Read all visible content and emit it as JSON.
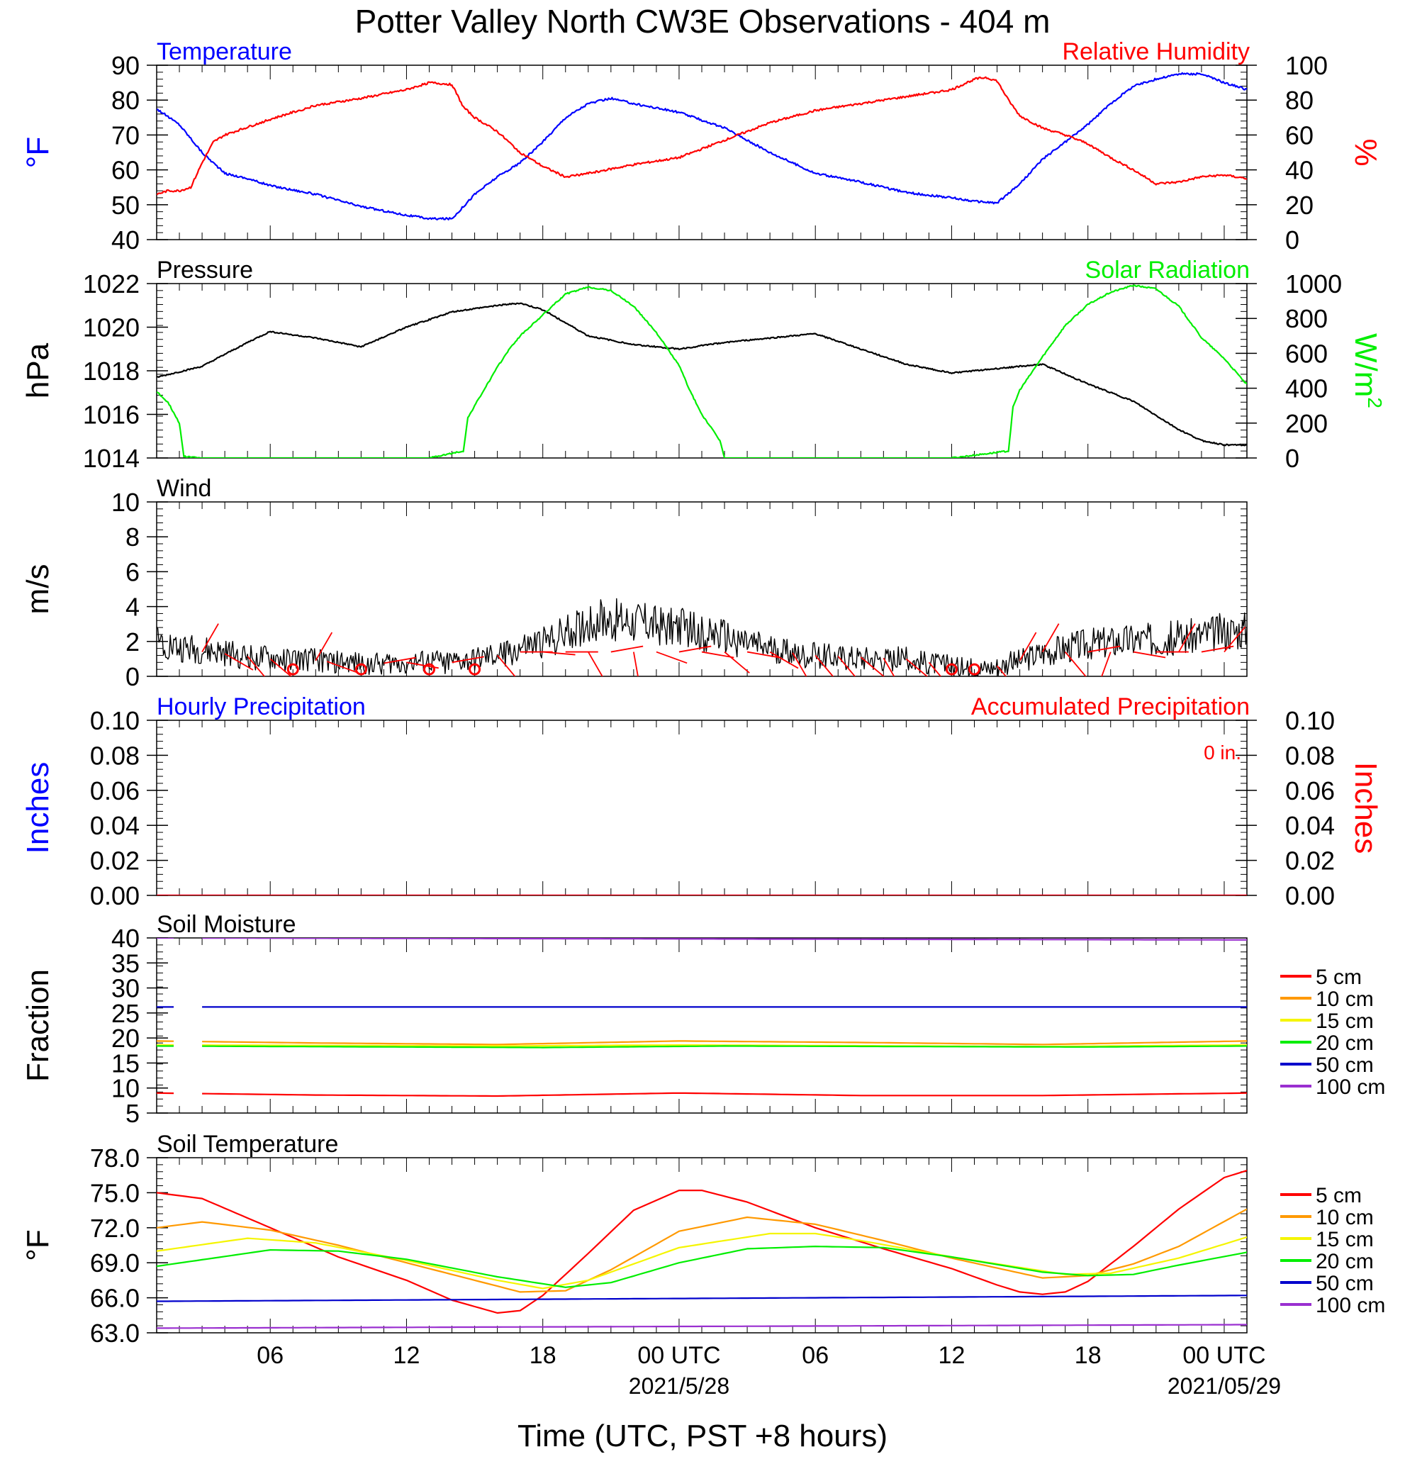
{
  "title": "Potter Valley North CW3E Observations - 404 m",
  "xlabel": "Time (UTC, PST +8 hours)",
  "x_ticks": [
    {
      "t": 6,
      "label": "06",
      "sub": ""
    },
    {
      "t": 12,
      "label": "12",
      "sub": ""
    },
    {
      "t": 18,
      "label": "18",
      "sub": ""
    },
    {
      "t": 24,
      "label": "00 UTC",
      "sub": "2021/5/28"
    },
    {
      "t": 30,
      "label": "06",
      "sub": ""
    },
    {
      "t": 36,
      "label": "12",
      "sub": ""
    },
    {
      "t": 42,
      "label": "18",
      "sub": ""
    },
    {
      "t": 48,
      "label": "00 UTC",
      "sub": "2021/05/29"
    }
  ],
  "x_range_hours": [
    1,
    49
  ],
  "colors": {
    "blue": "#0000ff",
    "red": "#ff0000",
    "green": "#00ee00",
    "black": "#000000",
    "orange": "#ff9900",
    "yellow": "#f5f500",
    "purple": "#9a2fd0"
  },
  "chart_data": [
    {
      "type": "line",
      "panel": "temperature_humidity",
      "title_left": "Temperature",
      "title_right": "Relative Humidity",
      "ylabel_left": "°F",
      "ylabel_right": "%",
      "ylim_left": [
        40,
        90
      ],
      "ylim_right": [
        0,
        100
      ],
      "yticks_left": [
        "90",
        "80",
        "70",
        "60",
        "50",
        "40"
      ],
      "yticks_right": [
        "100",
        "80",
        "60",
        "40",
        "20",
        "0"
      ],
      "series": [
        {
          "name": "Temperature",
          "axis": "left",
          "color": "#0000ff",
          "noise": 0.6,
          "x": [
            1,
            2,
            3,
            4,
            5,
            6,
            8,
            10,
            12,
            13,
            14,
            15,
            16,
            17,
            18,
            19,
            20,
            21,
            22,
            24,
            26,
            28,
            30,
            32,
            34,
            36,
            37,
            38,
            39,
            40,
            41,
            42,
            43,
            44,
            45,
            46,
            47,
            48,
            49
          ],
          "y": [
            77.5,
            73,
            65,
            59,
            57.5,
            55.5,
            53,
            49.5,
            47,
            46,
            46,
            53,
            58,
            62,
            68,
            75,
            79,
            80.5,
            79,
            76.5,
            72,
            65,
            59,
            56.5,
            53.5,
            52,
            51,
            50.5,
            56,
            63,
            68,
            73,
            79,
            84,
            86,
            87.5,
            87.5,
            85,
            83
          ]
        },
        {
          "name": "Relative Humidity",
          "axis": "right",
          "color": "#ff0000",
          "noise": 1.2,
          "x": [
            1,
            1.5,
            2,
            2.5,
            3,
            3.5,
            4,
            6,
            8,
            10,
            12,
            13,
            14,
            14.5,
            15,
            16,
            17,
            18,
            19,
            20,
            22,
            24,
            26,
            28,
            30,
            32,
            34,
            36,
            37,
            37.5,
            38,
            38.5,
            39,
            40,
            41,
            42,
            43,
            44,
            45,
            46,
            47,
            48,
            49
          ],
          "y": [
            26,
            28,
            28,
            30,
            44,
            56,
            60,
            69,
            77,
            81,
            86,
            90,
            89,
            76,
            70,
            62,
            50,
            42,
            36,
            38,
            43,
            47,
            57,
            67,
            74,
            78,
            82,
            86,
            92,
            93,
            91,
            80,
            71,
            64,
            60,
            55,
            47,
            40,
            32,
            33,
            36,
            37,
            35
          ]
        }
      ]
    },
    {
      "type": "line",
      "panel": "pressure_solar",
      "title_left": "Pressure",
      "title_right": "Solar Radiation",
      "ylabel_left": "hPa",
      "ylabel_right": "W/m",
      "ylabel_right_sup": "2",
      "ylim_left": [
        1014,
        1022
      ],
      "ylim_right": [
        0,
        1000
      ],
      "yticks_left": [
        "1022",
        "1020",
        "1018",
        "1016",
        "1014"
      ],
      "yticks_right": [
        "1000",
        "800",
        "600",
        "400",
        "200",
        "0"
      ],
      "series": [
        {
          "name": "Pressure",
          "axis": "left",
          "color": "#000000",
          "noise": 0.06,
          "x": [
            1,
            3,
            5,
            6,
            8,
            10,
            12,
            14,
            16,
            17,
            18,
            20,
            22,
            24,
            26,
            28,
            30,
            32,
            34,
            36,
            38,
            40,
            42,
            44,
            46,
            47,
            48,
            49
          ],
          "y": [
            1017.7,
            1018.2,
            1019.3,
            1019.8,
            1019.5,
            1019.1,
            1020.0,
            1020.7,
            1021.0,
            1021.1,
            1020.8,
            1019.6,
            1019.2,
            1019.0,
            1019.3,
            1019.5,
            1019.7,
            1019.0,
            1018.3,
            1017.9,
            1018.1,
            1018.3,
            1017.4,
            1016.6,
            1015.3,
            1014.8,
            1014.6,
            1014.6
          ]
        },
        {
          "name": "Solar Radiation",
          "axis": "right",
          "color": "#00ee00",
          "noise": 8,
          "x": [
            1,
            1.5,
            2,
            2.2,
            3,
            13,
            14.5,
            14.7,
            15,
            16,
            16.5,
            17,
            18,
            19,
            20,
            21,
            22,
            23,
            24,
            24.5,
            25,
            25.8,
            26,
            30,
            36,
            38.5,
            38.7,
            39,
            40,
            41,
            42,
            43,
            44,
            45,
            46,
            47,
            48,
            49
          ],
          "y": [
            380,
            320,
            200,
            10,
            0,
            0,
            40,
            230,
            300,
            520,
            620,
            700,
            820,
            940,
            980,
            960,
            870,
            720,
            530,
            380,
            250,
            100,
            0,
            0,
            0,
            40,
            290,
            390,
            580,
            760,
            880,
            950,
            990,
            970,
            870,
            690,
            570,
            420
          ]
        }
      ]
    },
    {
      "type": "line",
      "panel": "wind",
      "title_left": "Wind",
      "ylabel_left": "m/s",
      "ylim_left": [
        0,
        10
      ],
      "yticks_left": [
        "10",
        "8",
        "6",
        "4",
        "2",
        "0"
      ],
      "series": [
        {
          "name": "Wind",
          "axis": "left",
          "color": "#000000",
          "noise": 0.8,
          "x": [
            1,
            2,
            4,
            6,
            8,
            10,
            12,
            14,
            15,
            16,
            17,
            18,
            19,
            20,
            21,
            22,
            23,
            24,
            26,
            28,
            30,
            32,
            34,
            36,
            37,
            38,
            39,
            40,
            42,
            44,
            46,
            48,
            49
          ],
          "y": [
            2.2,
            1.6,
            1.3,
            1.0,
            0.9,
            0.7,
            0.8,
            0.8,
            0.9,
            1.2,
            1.6,
            1.9,
            2.4,
            3.0,
            3.3,
            3.2,
            3.0,
            2.8,
            2.2,
            1.5,
            1.2,
            1.1,
            1.0,
            0.6,
            0.4,
            0.6,
            0.9,
            1.4,
            1.9,
            2.1,
            2.2,
            2.6,
            2.7
          ]
        }
      ],
      "barbs": [
        {
          "t": 3.0,
          "dir": 30
        },
        {
          "t": 4.0,
          "dir": 120
        },
        {
          "t": 5.0,
          "dir": 140
        },
        {
          "t": 6.0,
          "dir": 130
        },
        {
          "t": 7.0,
          "calm": true
        },
        {
          "t": 8.0,
          "dir": 30
        },
        {
          "t": 8.5,
          "dir": 110
        },
        {
          "t": 10.0,
          "calm": true
        },
        {
          "t": 11.0,
          "dir": 80
        },
        {
          "t": 12.0,
          "dir": 100
        },
        {
          "t": 13.0,
          "calm": true
        },
        {
          "t": 14.0,
          "dir": 80
        },
        {
          "t": 15.0,
          "calm": true
        },
        {
          "t": 16.0,
          "dir": 140
        },
        {
          "t": 17.0,
          "dir": 90
        },
        {
          "t": 18.0,
          "dir": 95
        },
        {
          "t": 19.0,
          "dir": 90
        },
        {
          "t": 20.0,
          "dir": 150
        },
        {
          "t": 21.0,
          "dir": 80
        },
        {
          "t": 22.0,
          "dir": 170
        },
        {
          "t": 23.0,
          "dir": 110
        },
        {
          "t": 24.0,
          "dir": 80
        },
        {
          "t": 25.0,
          "dir": 100
        },
        {
          "t": 26.0,
          "dir": 130
        },
        {
          "t": 27.0,
          "dir": 100
        },
        {
          "t": 28.0,
          "dir": 120
        },
        {
          "t": 29.0,
          "dir": 150
        },
        {
          "t": 30.0,
          "dir": 140
        },
        {
          "t": 31.0,
          "dir": 140
        },
        {
          "t": 32.0,
          "dir": 130
        },
        {
          "t": 33.0,
          "dir": 150
        },
        {
          "t": 34.0,
          "dir": 130
        },
        {
          "t": 35.0,
          "dir": 140
        },
        {
          "t": 36.0,
          "calm": true
        },
        {
          "t": 37.0,
          "calm": true
        },
        {
          "t": 38.0,
          "dir": 140
        },
        {
          "t": 39.0,
          "dir": 30
        },
        {
          "t": 40.0,
          "dir": 30
        },
        {
          "t": 41.0,
          "dir": 140
        },
        {
          "t": 42.0,
          "dir": 80
        },
        {
          "t": 43.0,
          "dir": 200
        },
        {
          "t": 44.0,
          "dir": 100
        },
        {
          "t": 45.0,
          "dir": 90
        },
        {
          "t": 46.0,
          "dir": 30
        },
        {
          "t": 47.0,
          "dir": 80
        },
        {
          "t": 48.0,
          "dir": 40
        }
      ]
    },
    {
      "type": "line",
      "panel": "precipitation",
      "title_left": "Hourly Precipitation",
      "title_right": "Accumulated Precipitation",
      "annotation": "0 in.",
      "ylabel_left": "Inches",
      "ylabel_right": "Inches",
      "ylim_left": [
        0,
        0.1
      ],
      "ylim_right": [
        0,
        0.1
      ],
      "yticks_left": [
        "0.10",
        "0.08",
        "0.06",
        "0.04",
        "0.02",
        "0.00"
      ],
      "yticks_right": [
        "0.10",
        "0.08",
        "0.06",
        "0.04",
        "0.02",
        "0.00"
      ],
      "series": [
        {
          "name": "Hourly Precipitation",
          "axis": "left",
          "color": "#0000ff",
          "noise": 0,
          "x": [
            1,
            49
          ],
          "y": [
            0,
            0
          ]
        },
        {
          "name": "Accumulated Precipitation",
          "axis": "right",
          "color": "#ff0000",
          "noise": 0,
          "x": [
            1,
            49
          ],
          "y": [
            0,
            0
          ]
        }
      ]
    },
    {
      "type": "line",
      "panel": "soil_moisture",
      "title_left": "Soil Moisture",
      "ylabel_left": "Fraction",
      "ylim_left": [
        5,
        40
      ],
      "yticks_left": [
        "40",
        "35",
        "30",
        "25",
        "20",
        "15",
        "10",
        "5"
      ],
      "gap": [
        1.9,
        2.9
      ],
      "legend": [
        "5 cm",
        "10 cm",
        "15 cm",
        "20 cm",
        "50 cm",
        "100 cm"
      ],
      "series": [
        {
          "name": "5 cm",
          "color": "#ff0000",
          "noise": 0,
          "x": [
            1,
            8,
            16,
            24,
            32,
            40,
            49
          ],
          "y": [
            9.0,
            8.6,
            8.4,
            9.0,
            8.5,
            8.5,
            9.0
          ]
        },
        {
          "name": "10 cm",
          "color": "#ff9900",
          "noise": 0,
          "x": [
            1,
            8,
            16,
            24,
            32,
            40,
            49
          ],
          "y": [
            19.4,
            19.0,
            18.7,
            19.4,
            19.1,
            18.7,
            19.4
          ]
        },
        {
          "name": "15 cm",
          "color": "#f5f500",
          "noise": 0,
          "x": [
            1,
            16,
            24,
            40,
            49
          ],
          "y": [
            18.6,
            18.4,
            18.6,
            18.3,
            18.6
          ]
        },
        {
          "name": "20 cm",
          "color": "#00ee00",
          "noise": 0,
          "x": [
            1,
            18,
            26,
            42,
            49
          ],
          "y": [
            18.4,
            18.1,
            18.4,
            18.2,
            18.4
          ]
        },
        {
          "name": "50 cm",
          "color": "#0000cc",
          "noise": 0,
          "x": [
            1,
            49
          ],
          "y": [
            26.2,
            26.2
          ]
        },
        {
          "name": "100 cm",
          "color": "#9a2fd0",
          "noise": 0,
          "x": [
            1,
            49
          ],
          "y": [
            40.0,
            39.6
          ]
        }
      ]
    },
    {
      "type": "line",
      "panel": "soil_temperature",
      "title_left": "Soil Temperature",
      "ylabel_left": "°F",
      "ylim_left": [
        63,
        78
      ],
      "yticks_left": [
        "78.0",
        "75.0",
        "72.0",
        "69.0",
        "66.0",
        "63.0"
      ],
      "legend": [
        "5 cm",
        "10 cm",
        "15 cm",
        "20 cm",
        "50 cm",
        "100 cm"
      ],
      "series": [
        {
          "name": "5 cm",
          "color": "#ff0000",
          "noise": 0,
          "x": [
            1,
            3,
            6,
            9,
            12,
            14,
            16,
            17,
            18,
            20,
            22,
            24,
            25,
            27,
            30,
            33,
            36,
            38,
            39,
            40,
            41,
            42,
            44,
            46,
            48,
            49
          ],
          "y": [
            75.0,
            74.5,
            72,
            69.5,
            67.5,
            65.8,
            64.7,
            64.9,
            66.2,
            69.8,
            73.5,
            75.2,
            75.2,
            74.2,
            72,
            70.2,
            68.5,
            67.1,
            66.5,
            66.3,
            66.5,
            67.4,
            70.4,
            73.6,
            76.3,
            76.9
          ]
        },
        {
          "name": "10 cm",
          "color": "#ff9900",
          "noise": 0,
          "x": [
            1,
            3,
            6,
            9,
            12,
            15,
            17,
            19,
            21,
            24,
            27,
            30,
            33,
            36,
            40,
            42,
            44,
            46,
            49
          ],
          "y": [
            72,
            72.5,
            71.8,
            70.5,
            69,
            67.5,
            66.5,
            66.6,
            68.4,
            71.7,
            72.9,
            72.3,
            70.9,
            69.4,
            67.7,
            67.9,
            68.9,
            70.4,
            73.6
          ]
        },
        {
          "name": "15 cm",
          "color": "#f5f500",
          "noise": 0,
          "x": [
            1,
            5,
            8,
            12,
            16,
            18,
            20,
            24,
            28,
            30,
            32,
            36,
            41,
            43,
            46,
            49
          ],
          "y": [
            70.0,
            71.1,
            70.7,
            69.2,
            67.5,
            66.8,
            67.5,
            70.3,
            71.5,
            71.5,
            70.9,
            69.5,
            68.0,
            68.1,
            69.4,
            71.2
          ]
        },
        {
          "name": "20 cm",
          "color": "#00ee00",
          "noise": 0,
          "x": [
            1,
            6,
            9,
            12,
            16,
            19,
            21,
            24,
            27,
            30,
            33,
            36,
            40,
            42,
            44,
            46,
            49
          ],
          "y": [
            68.7,
            70.1,
            70.0,
            69.3,
            67.8,
            66.9,
            67.3,
            69.0,
            70.2,
            70.4,
            70.3,
            69.5,
            68.2,
            67.9,
            68.0,
            68.8,
            69.9
          ]
        },
        {
          "name": "50 cm",
          "color": "#0000cc",
          "noise": 0,
          "x": [
            1,
            49
          ],
          "y": [
            65.7,
            66.2
          ]
        },
        {
          "name": "100 cm",
          "color": "#9a2fd0",
          "noise": 0,
          "x": [
            1,
            49
          ],
          "y": [
            63.4,
            63.7
          ]
        }
      ]
    }
  ]
}
